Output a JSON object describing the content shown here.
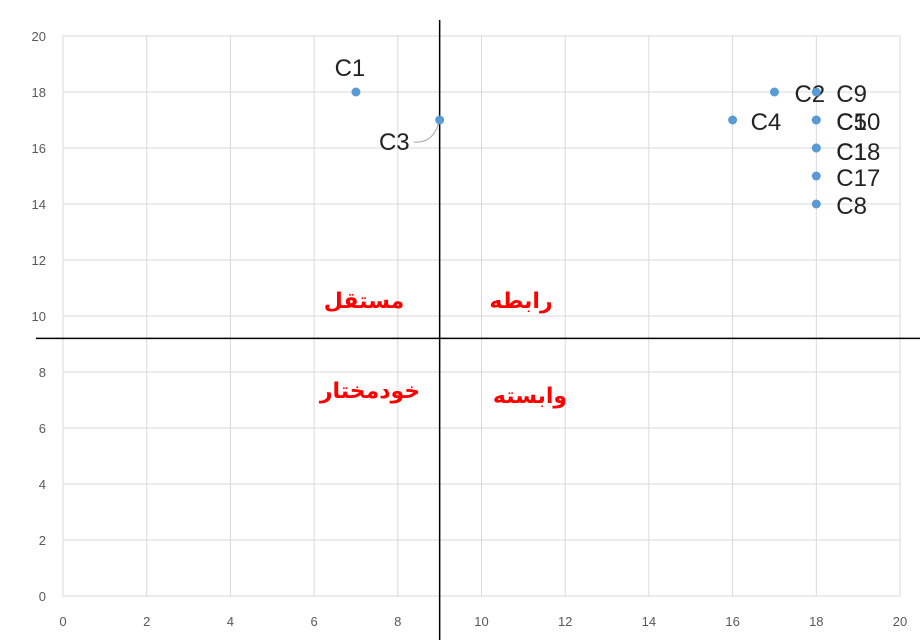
{
  "chart_data": {
    "type": "scatter",
    "title": "",
    "xlabel": "",
    "ylabel": "",
    "xlim": [
      0,
      20
    ],
    "ylim": [
      0,
      20
    ],
    "x_ticks": [
      0,
      2,
      4,
      6,
      8,
      10,
      12,
      14,
      16,
      18,
      20
    ],
    "y_ticks": [
      0,
      2,
      4,
      6,
      8,
      10,
      12,
      14,
      16,
      18,
      20
    ],
    "grid": true,
    "divider_x": 9,
    "divider_y": 9.2,
    "point_color": "#5b9bd5",
    "points": [
      {
        "label": "C1",
        "x": 7,
        "y": 18
      },
      {
        "label": "C3",
        "x": 9,
        "y": 17
      },
      {
        "label": "C4",
        "x": 16,
        "y": 17
      },
      {
        "label": "C2",
        "x": 17,
        "y": 18
      },
      {
        "label": "C9",
        "x": 18,
        "y": 18
      },
      {
        "label": "C10",
        "x": 18,
        "y": 17
      },
      {
        "label": "C5",
        "x": 18,
        "y": 17
      },
      {
        "label": "C18",
        "x": 18,
        "y": 16
      },
      {
        "label": "C1",
        "x": 18,
        "y": 16
      },
      {
        "label": "C17",
        "x": 18,
        "y": 15
      },
      {
        "label": "C8",
        "x": 18,
        "y": 14
      }
    ],
    "quadrant_labels": {
      "top_left": "مستقل",
      "top_right": "رابطه",
      "bottom_left": "خودمختار",
      "bottom_right": "وابسته"
    },
    "quadrant_label_color": "#ff0000"
  }
}
